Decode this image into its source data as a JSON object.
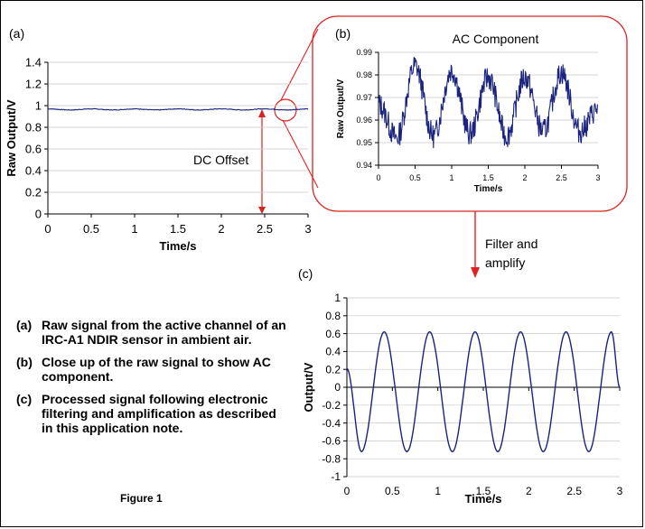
{
  "chart_data": [
    {
      "panel": "(a)",
      "type": "line",
      "title": "",
      "xlabel": "Time/s",
      "ylabel": "Raw Output/V",
      "xlim": [
        0,
        3
      ],
      "ylim": [
        0,
        1.4
      ],
      "xticks": [
        "0",
        "0.5",
        "1",
        "1.5",
        "2",
        "2.5",
        "3"
      ],
      "yticks": [
        "0",
        "0.2",
        "0.4",
        "0.6",
        "0.8",
        "1",
        "1.2",
        "1.4"
      ],
      "series": [
        {
          "color": "#1a237e",
          "signal": "raw",
          "x": [
            0,
            0.25,
            0.5,
            0.75,
            1.0,
            1.25,
            1.5,
            1.75,
            2.0,
            2.25,
            2.5,
            2.75,
            3.0
          ],
          "y": [
            0.97,
            0.96,
            0.97,
            0.96,
            0.97,
            0.96,
            0.97,
            0.96,
            0.97,
            0.96,
            0.97,
            0.96,
            0.97
          ]
        }
      ],
      "annotation": "DC Offset",
      "grid": true
    },
    {
      "panel": "(b)",
      "type": "line",
      "title": "AC Component",
      "xlabel": "Time/s",
      "ylabel": "Raw Output/V",
      "xlim": [
        0,
        3
      ],
      "ylim": [
        0.94,
        0.99
      ],
      "xticks": [
        "0",
        "0.5",
        "1",
        "1.5",
        "2",
        "2.5",
        "3"
      ],
      "yticks": [
        "0.94",
        "0.95",
        "0.96",
        "0.97",
        "0.98",
        "0.99"
      ],
      "series": [
        {
          "color": "#1a237e",
          "signal": "raw",
          "x": [
            0,
            0.25,
            0.5,
            0.75,
            1.0,
            1.25,
            1.5,
            1.75,
            2.0,
            2.25,
            2.5,
            2.75,
            3.0
          ],
          "y": [
            0.967,
            0.952,
            0.984,
            0.953,
            0.982,
            0.954,
            0.979,
            0.953,
            0.979,
            0.955,
            0.981,
            0.955,
            0.965
          ]
        }
      ],
      "grid": true
    },
    {
      "panel": "(c)",
      "type": "line",
      "title": "",
      "xlabel": "Time/s",
      "ylabel": "Output/V",
      "xlim": [
        0,
        3
      ],
      "ylim": [
        -1,
        1
      ],
      "xticks": [
        "0",
        "0.5",
        "1",
        "1.5",
        "2",
        "2.5",
        "3"
      ],
      "yticks": [
        "-1",
        "-0.8",
        "-0.6",
        "-0.4",
        "-0.2",
        "0",
        "0.2",
        "0.4",
        "0.6",
        "0.8",
        "1"
      ],
      "series": [
        {
          "color": "#1a237e",
          "signal": "sine",
          "x": [
            0,
            0.16,
            0.41,
            0.66,
            0.91,
            1.16,
            1.41,
            1.66,
            1.91,
            2.16,
            2.41,
            2.66,
            2.91,
            3.0
          ],
          "y": [
            0.21,
            -0.72,
            0.62,
            -0.72,
            0.62,
            -0.72,
            0.62,
            -0.72,
            0.62,
            -0.72,
            0.62,
            -0.72,
            0.62,
            0.0
          ]
        }
      ],
      "grid": true
    }
  ],
  "labels": {
    "panel_a": "(a)",
    "panel_b": "(b)",
    "panel_c": "(c)",
    "filter_line1": "Filter and",
    "filter_line2": "amplify"
  },
  "captions": [
    {
      "letter": "(a)",
      "text": "Raw signal from the active channel of an IRC-A1 NDIR sensor in ambient air."
    },
    {
      "letter": "(b)",
      "text": "Close up of the raw signal to show AC component."
    },
    {
      "letter": "(c)",
      "text": "Processed signal following electronic filtering and amplification as described in this application note."
    }
  ],
  "figure_title": "Figure 1",
  "colors": {
    "line": "#1a237e",
    "accent": "#e02020",
    "grid": "#c8c8c8"
  }
}
